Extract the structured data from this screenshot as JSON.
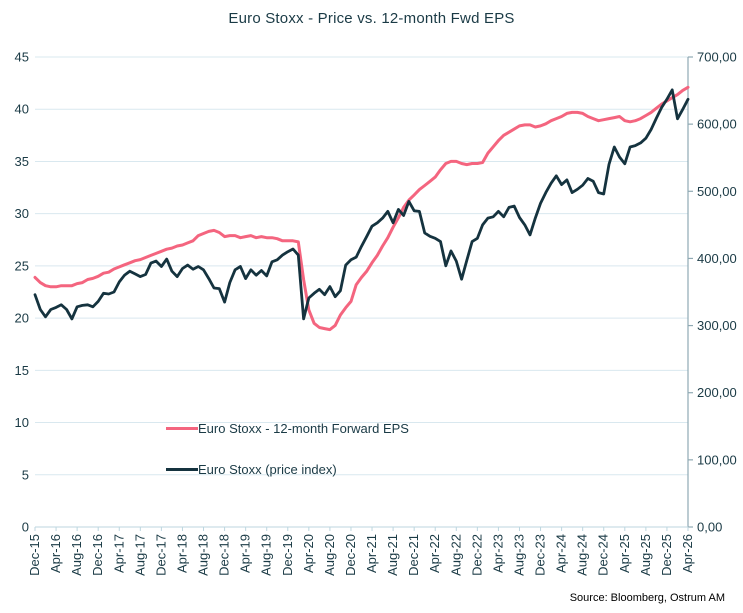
{
  "title": "Euro Stoxx - Price vs. 12-month Fwd EPS",
  "source": "Source: Bloomberg, Ostrum AM",
  "colors": {
    "eps_line": "#f4657f",
    "price_line": "#15333f",
    "grid": "#d9e8ef",
    "axis_line": "#8fa9b3",
    "tick": "#bcd6df",
    "text": "#1a3a45",
    "source_text": "#000000",
    "background": "#ffffff"
  },
  "legend": [
    {
      "label": "Euro Stoxx - 12-month Forward EPS",
      "series": "eps"
    },
    {
      "label": "Euro Stoxx (price index)",
      "series": "price"
    }
  ],
  "chart_data": {
    "type": "line",
    "title": "Euro Stoxx - Price vs. 12-month Fwd EPS",
    "x_start": "Dec-15",
    "x_end": "Apr-26",
    "x_frequency": "monthly",
    "x_tick_labels": [
      "Dec-15",
      "Apr-16",
      "Aug-16",
      "Dec-16",
      "Apr-17",
      "Aug-17",
      "Dec-17",
      "Apr-18",
      "Aug-18",
      "Dec-18",
      "Apr-19",
      "Aug-19",
      "Dec-19",
      "Apr-20",
      "Aug-20",
      "Dec-20",
      "Apr-21",
      "Aug-21",
      "Dec-21",
      "Apr-22",
      "Aug-22",
      "Dec-22",
      "Apr-23",
      "Aug-23",
      "Dec-23",
      "Apr-24",
      "Aug-24",
      "Dec-24",
      "Apr-25",
      "Aug-25",
      "Dec-25",
      "Apr-26"
    ],
    "left_axis": {
      "min": 0,
      "max": 45,
      "tick_values": [
        45,
        40,
        35,
        30,
        25,
        20,
        15,
        10,
        5,
        0
      ],
      "tick_labels": [
        "45",
        "40",
        "35",
        "30",
        "25",
        "20",
        "15",
        "10",
        "5",
        "0"
      ]
    },
    "right_axis": {
      "min": 0,
      "max": 700,
      "tick_values": [
        700,
        600,
        500,
        400,
        300,
        200,
        100,
        0
      ],
      "tick_labels": [
        "700,00",
        "600,00",
        "500,00",
        "400,00",
        "300,00",
        "200,00",
        "100,00",
        "0,00"
      ]
    },
    "grid": "horizontal",
    "legend_position": "inside-left-bottom",
    "series": [
      {
        "name": "Euro Stoxx - 12-month Forward EPS",
        "axis": "left",
        "color_key": "eps_line",
        "values": [
          23.9,
          23.4,
          23.1,
          23.0,
          23.0,
          23.1,
          23.1,
          23.1,
          23.3,
          23.4,
          23.7,
          23.8,
          24.0,
          24.3,
          24.4,
          24.7,
          24.9,
          25.1,
          25.3,
          25.5,
          25.6,
          25.8,
          26.0,
          26.2,
          26.4,
          26.6,
          26.7,
          26.9,
          27.0,
          27.2,
          27.4,
          27.9,
          28.1,
          28.3,
          28.4,
          28.2,
          27.8,
          27.9,
          27.9,
          27.7,
          27.8,
          27.9,
          27.7,
          27.8,
          27.7,
          27.7,
          27.6,
          27.4,
          27.4,
          27.4,
          27.3,
          23.7,
          20.8,
          19.5,
          19.1,
          19.0,
          18.9,
          19.3,
          20.3,
          21.0,
          21.6,
          23.2,
          23.9,
          24.5,
          25.3,
          26.0,
          26.9,
          27.7,
          28.7,
          29.6,
          30.6,
          31.3,
          31.8,
          32.3,
          32.7,
          33.1,
          33.5,
          34.2,
          34.8,
          35.0,
          35.0,
          34.8,
          34.7,
          34.8,
          34.8,
          34.9,
          35.8,
          36.4,
          37.0,
          37.5,
          37.8,
          38.1,
          38.4,
          38.5,
          38.5,
          38.3,
          38.4,
          38.6,
          38.9,
          39.1,
          39.3,
          39.6,
          39.7,
          39.7,
          39.6,
          39.3,
          39.1,
          38.9,
          39.0,
          39.1,
          39.2,
          39.3,
          38.9,
          38.8,
          38.9,
          39.1,
          39.4,
          39.7,
          40.1,
          40.5,
          40.8,
          41.1,
          41.4,
          41.8,
          42.1
        ]
      },
      {
        "name": "Euro Stoxx (price index)",
        "axis": "right",
        "color_key": "price_line",
        "values": [
          346,
          324,
          313,
          324,
          327,
          331,
          324,
          310,
          328,
          330,
          331,
          328,
          336,
          348,
          347,
          350,
          365,
          375,
          381,
          377,
          373,
          376,
          393,
          396,
          388,
          399,
          381,
          373,
          385,
          390,
          384,
          388,
          383,
          370,
          356,
          355,
          335,
          364,
          383,
          388,
          370,
          383,
          375,
          382,
          374,
          395,
          398,
          405,
          410,
          414,
          405,
          310,
          341,
          348,
          354,
          346,
          358,
          343,
          352,
          390,
          398,
          402,
          418,
          433,
          448,
          453,
          460,
          470,
          453,
          473,
          464,
          485,
          471,
          470,
          438,
          433,
          430,
          425,
          389,
          411,
          396,
          369,
          397,
          425,
          430,
          450,
          460,
          462,
          470,
          462,
          476,
          478,
          461,
          450,
          435,
          460,
          482,
          498,
          512,
          523,
          510,
          517,
          498,
          503,
          509,
          519,
          515,
          498,
          496,
          540,
          566,
          551,
          541,
          566,
          568,
          572,
          579,
          592,
          609,
          625,
          637,
          651,
          608,
          622,
          637
        ]
      }
    ]
  }
}
